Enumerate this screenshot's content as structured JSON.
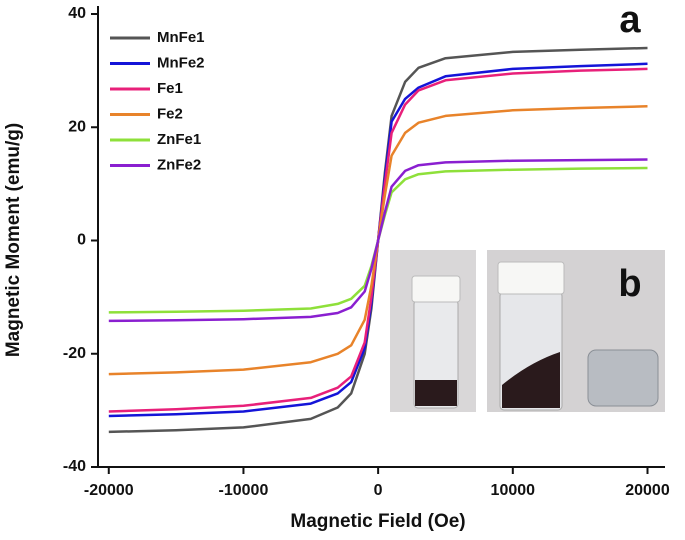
{
  "chart_data": {
    "type": "line",
    "x_label": "Magnetic Field (Oe)",
    "y_label": "Magnetic Moment (emu/g)",
    "annotations": [
      "a",
      "b"
    ],
    "x": [
      -20000,
      -15000,
      -10000,
      -5000,
      -3000,
      -2000,
      -1000,
      -500,
      0,
      500,
      1000,
      2000,
      3000,
      5000,
      10000,
      15000,
      20000
    ],
    "series": [
      {
        "name": "MnFe1",
        "color": "#555555",
        "values": [
          -33.8,
          -33.5,
          -33,
          -31.5,
          -29.5,
          -27,
          -20,
          -12,
          0,
          12,
          22,
          28,
          30.5,
          32.2,
          33.3,
          33.7,
          34
        ]
      },
      {
        "name": "MnFe2",
        "color": "#1414d8",
        "values": [
          -31,
          -30.7,
          -30.2,
          -28.8,
          -27,
          -25,
          -19,
          -11,
          0,
          11,
          21,
          25,
          27,
          29,
          30.3,
          30.8,
          31.2
        ]
      },
      {
        "name": "Fe1",
        "color": "#e8207a",
        "values": [
          -30.2,
          -29.8,
          -29.2,
          -27.8,
          -26,
          -24,
          -18,
          -10,
          0,
          10,
          19,
          24,
          26.5,
          28.3,
          29.5,
          30,
          30.3
        ]
      },
      {
        "name": "Fe2",
        "color": "#e8832a",
        "values": [
          -23.6,
          -23.3,
          -22.8,
          -21.5,
          -20,
          -18.5,
          -14,
          -8,
          0,
          8,
          15,
          19,
          20.8,
          22,
          23,
          23.4,
          23.7
        ]
      },
      {
        "name": "ZnFe1",
        "color": "#8ee03a",
        "values": [
          -12.7,
          -12.6,
          -12.4,
          -12,
          -11.2,
          -10.3,
          -8,
          -4.5,
          0,
          4.5,
          8.5,
          10.8,
          11.7,
          12.2,
          12.5,
          12.7,
          12.8
        ]
      },
      {
        "name": "ZnFe2",
        "color": "#8a1fd0",
        "values": [
          -14.2,
          -14.1,
          -13.9,
          -13.5,
          -12.8,
          -11.8,
          -9,
          -5,
          0,
          5,
          9.5,
          12.3,
          13.3,
          13.8,
          14.1,
          14.2,
          14.3
        ]
      }
    ],
    "xlim": [
      -20800,
      21300
    ],
    "xticks": [
      -20000,
      -10000,
      0,
      10000,
      20000
    ],
    "ylim": [
      -40,
      40
    ],
    "yticks": [
      -40,
      -20,
      0,
      20,
      40
    ],
    "grid": false,
    "legend": "upper left"
  }
}
